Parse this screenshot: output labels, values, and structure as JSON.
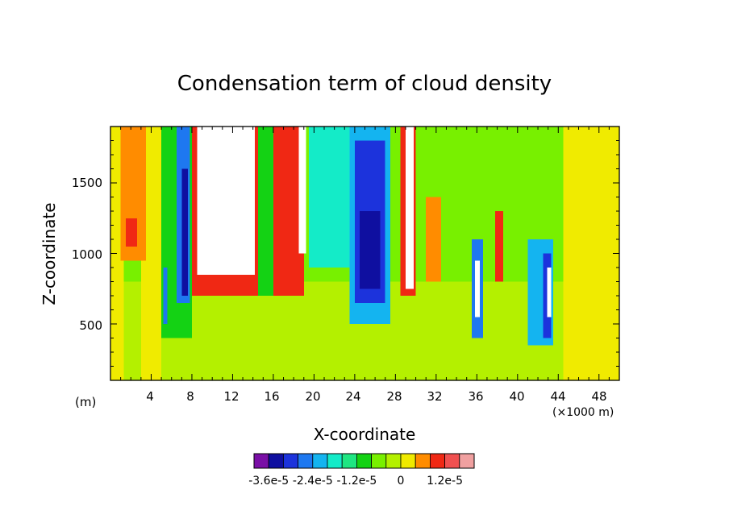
{
  "chart_data": {
    "type": "heatmap",
    "title": "Condensation term of cloud density",
    "xlabel": "X-coordinate",
    "ylabel": "Z-coordinate",
    "x_unit_left": "(m)",
    "x_unit_right": "(×1000 m)",
    "xlim": [
      0,
      50
    ],
    "ylim": [
      100,
      1900
    ],
    "x_ticks": [
      "4",
      "8",
      "12",
      "16",
      "20",
      "24",
      "28",
      "32",
      "36",
      "40",
      "44",
      "48"
    ],
    "y_ticks": [
      "500",
      "1000",
      "1500"
    ],
    "colorbar": {
      "colors": [
        "#7a0fa6",
        "#0f0fa0",
        "#1c33dc",
        "#1e78f0",
        "#14b4f0",
        "#14ebc8",
        "#1ee682",
        "#14d214",
        "#78f000",
        "#b4f000",
        "#f0eb00",
        "#ff8c00",
        "#f02814",
        "#f05050",
        "#f0a0a0"
      ],
      "labels": [
        "-3.6e-5",
        "-2.4e-5",
        "-1.2e-5",
        "0",
        "1.2e-5"
      ],
      "label_positions": [
        1,
        4,
        7,
        10,
        13
      ]
    },
    "field": [
      {
        "x0": 0,
        "x1": 50,
        "z0": 100,
        "z1": 1900,
        "color": "#78f000"
      },
      {
        "x0": 0,
        "x1": 50,
        "z0": 100,
        "z1": 800,
        "color": "#b4f000"
      },
      {
        "x0": 0,
        "x1": 1.3,
        "z0": 100,
        "z1": 1900,
        "color": "#f0eb00"
      },
      {
        "x0": 3,
        "x1": 5,
        "z0": 100,
        "z1": 1900,
        "color": "#f0eb00"
      },
      {
        "x0": 1,
        "x1": 3.5,
        "z0": 950,
        "z1": 1900,
        "color": "#ff8c00"
      },
      {
        "x0": 1.5,
        "x1": 2.6,
        "z0": 1050,
        "z1": 1250,
        "color": "#f02814"
      },
      {
        "x0": 5,
        "x1": 8,
        "z0": 400,
        "z1": 1900,
        "color": "#14d214"
      },
      {
        "x0": 6.5,
        "x1": 7.8,
        "z0": 650,
        "z1": 1900,
        "color": "#1e78f0"
      },
      {
        "x0": 7,
        "x1": 7.6,
        "z0": 700,
        "z1": 1600,
        "color": "#0f0fa0"
      },
      {
        "x0": 5.2,
        "x1": 5.6,
        "z0": 500,
        "z1": 900,
        "color": "#1e78f0"
      },
      {
        "x0": 8,
        "x1": 15,
        "z0": 700,
        "z1": 1900,
        "color": "#f02814"
      },
      {
        "x0": 8.5,
        "x1": 14.2,
        "z0": 850,
        "z1": 1900,
        "color": "#ffffff"
      },
      {
        "x0": 14.5,
        "x1": 16,
        "z0": 700,
        "z1": 1900,
        "color": "#14d214"
      },
      {
        "x0": 16,
        "x1": 19,
        "z0": 700,
        "z1": 1900,
        "color": "#f02814"
      },
      {
        "x0": 18.5,
        "x1": 19.2,
        "z0": 1000,
        "z1": 1900,
        "color": "#ffffff"
      },
      {
        "x0": 19.5,
        "x1": 23.5,
        "z0": 900,
        "z1": 1900,
        "color": "#14ebc8"
      },
      {
        "x0": 23.5,
        "x1": 27.5,
        "z0": 500,
        "z1": 1900,
        "color": "#14b4f0"
      },
      {
        "x0": 24,
        "x1": 27,
        "z0": 650,
        "z1": 1800,
        "color": "#1c33dc"
      },
      {
        "x0": 24.5,
        "x1": 26.5,
        "z0": 750,
        "z1": 1300,
        "color": "#0f0fa0"
      },
      {
        "x0": 28.5,
        "x1": 30,
        "z0": 700,
        "z1": 1900,
        "color": "#f02814"
      },
      {
        "x0": 29,
        "x1": 29.8,
        "z0": 750,
        "z1": 1900,
        "color": "#ffffff"
      },
      {
        "x0": 31,
        "x1": 32.5,
        "z0": 800,
        "z1": 1400,
        "color": "#ff8c00"
      },
      {
        "x0": 35.5,
        "x1": 36.6,
        "z0": 400,
        "z1": 1100,
        "color": "#1e78f0"
      },
      {
        "x0": 35.8,
        "x1": 36.3,
        "z0": 550,
        "z1": 950,
        "color": "#ffffff"
      },
      {
        "x0": 37.8,
        "x1": 38.6,
        "z0": 800,
        "z1": 1300,
        "color": "#f02814"
      },
      {
        "x0": 41,
        "x1": 43.5,
        "z0": 350,
        "z1": 1100,
        "color": "#14b4f0"
      },
      {
        "x0": 42.5,
        "x1": 43.3,
        "z0": 400,
        "z1": 1000,
        "color": "#1c33dc"
      },
      {
        "x0": 42.9,
        "x1": 43.3,
        "z0": 550,
        "z1": 900,
        "color": "#ffffff"
      },
      {
        "x0": 44.5,
        "x1": 50,
        "z0": 100,
        "z1": 1900,
        "color": "#f0eb00"
      }
    ]
  }
}
